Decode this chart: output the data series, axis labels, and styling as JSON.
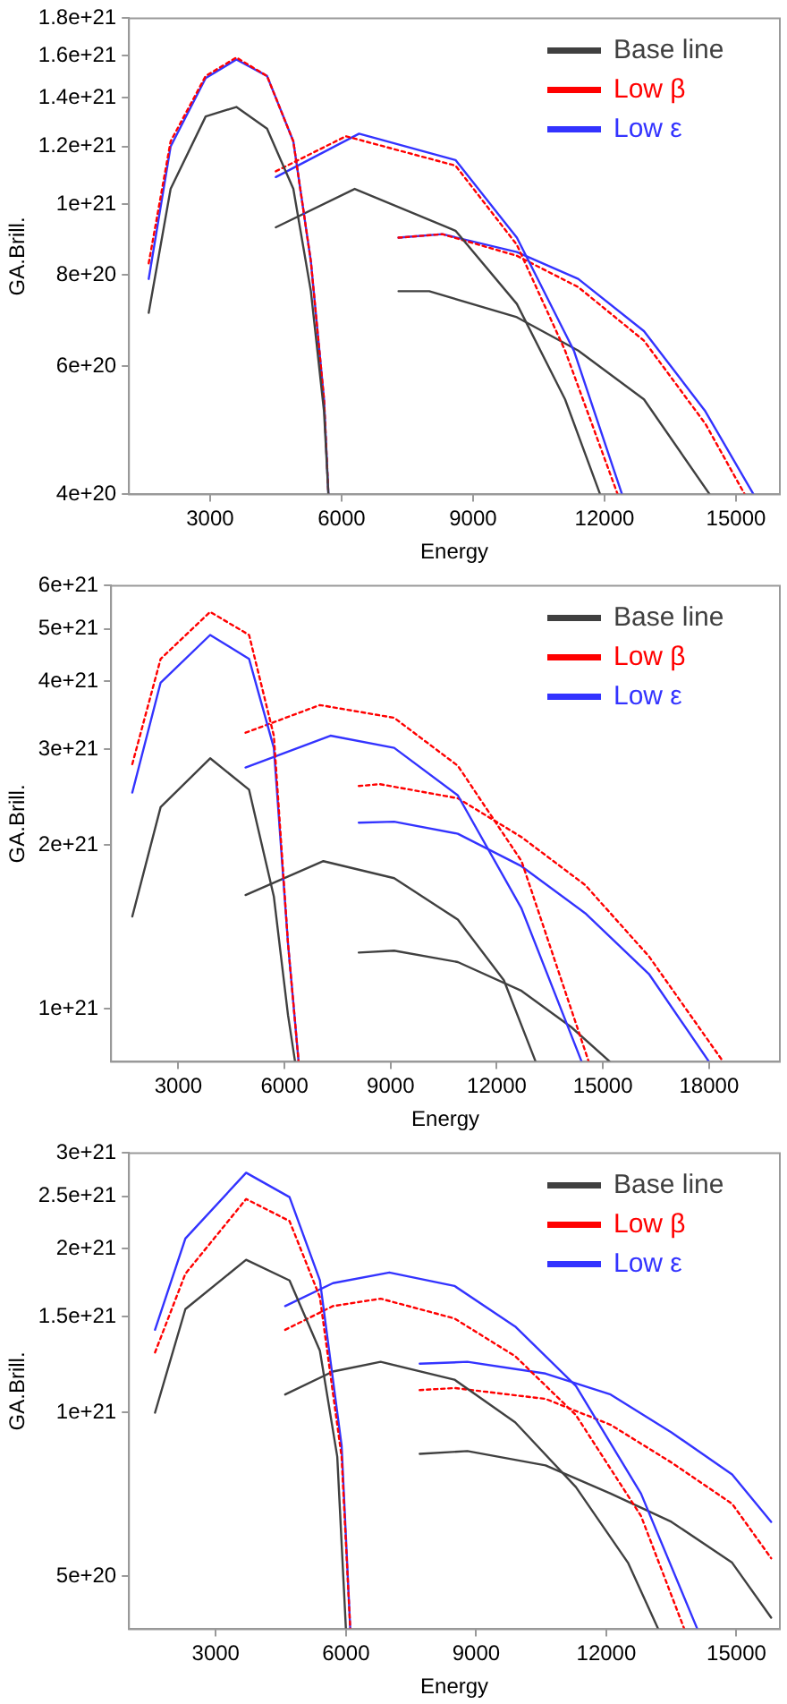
{
  "chart_data": [
    {
      "type": "line",
      "xlabel": "Energy",
      "ylabel": "GA.Brill.",
      "log": "y",
      "legend": "top right",
      "marker": "none",
      "xlim": [
        1150,
        16000
      ],
      "xticks": [
        3000,
        6000,
        9000,
        12000,
        15000
      ],
      "ylim": [
        4e+20,
        1.8e+21
      ],
      "yticks": [
        {
          "value": 4e+20,
          "label": "4e+20"
        },
        {
          "value": 6e+20,
          "label": "6e+20"
        },
        {
          "value": 8e+20,
          "label": "8e+20"
        },
        {
          "value": 1e+21,
          "label": "1e+21"
        },
        {
          "value": 1.2e+21,
          "label": "1.2e+21"
        },
        {
          "value": 1.4e+21,
          "label": "1.4e+21"
        },
        {
          "value": 1.6e+21,
          "label": "1.6e+21"
        },
        {
          "value": 1.8e+21,
          "label": "1.8e+21"
        }
      ],
      "series": [
        {
          "name": "Base line",
          "color": "#404040",
          "x": [
            1600,
            2100,
            2900,
            3600,
            4300,
            4900,
            5300,
            5600,
            5700
          ],
          "values": [
            7.1e+20,
            1.05e+21,
            1.32e+21,
            1.36e+21,
            1.27e+21,
            1.05e+21,
            7.6e+20,
            5.2e+20,
            4e+20
          ]
        },
        {
          "name": "Low β",
          "color": "#ff0000",
          "line_style": "dotted",
          "x": [
            1600,
            2100,
            2900,
            3600,
            4300,
            4900,
            5300,
            5600,
            5700
          ],
          "values": [
            8.3e+20,
            1.22e+21,
            1.5e+21,
            1.59e+21,
            1.5e+21,
            1.22e+21,
            8.35e+20,
            5.4e+20,
            4e+20
          ]
        },
        {
          "name": "Low ε",
          "color": "#3333ff",
          "x": [
            1600,
            2100,
            2900,
            3600,
            4300,
            4900,
            5300,
            5600,
            5700
          ],
          "values": [
            7.9e+20,
            1.2e+21,
            1.49e+21,
            1.58e+21,
            1.5e+21,
            1.22e+21,
            8.35e+20,
            5.4e+20,
            4e+20
          ]
        },
        {
          "color": "#404040",
          "x": [
            4500,
            6300,
            8600,
            10000,
            11100,
            11900
          ],
          "values": [
            9.3e+20,
            1.05e+21,
            9.2e+20,
            7.3e+20,
            5.4e+20,
            4e+20
          ]
        },
        {
          "color": "#ff0000",
          "line_style": "dotted",
          "x": [
            4500,
            6100,
            8600,
            10000,
            11100,
            12300
          ],
          "values": [
            1.11e+21,
            1.24e+21,
            1.13e+21,
            8.8e+20,
            6.3e+20,
            4e+20
          ]
        },
        {
          "color": "#3333ff",
          "x": [
            4500,
            6400,
            8600,
            10000,
            11300,
            12400
          ],
          "values": [
            1.09e+21,
            1.25e+21,
            1.15e+21,
            9e+20,
            6.3e+20,
            4e+20
          ]
        },
        {
          "color": "#404040",
          "x": [
            7300,
            8000,
            10000,
            11400,
            12900,
            14400
          ],
          "values": [
            7.6e+20,
            7.6e+20,
            7e+20,
            6.3e+20,
            5.4e+20,
            4e+20
          ]
        },
        {
          "color": "#ff0000",
          "line_style": "dotted",
          "x": [
            7300,
            8300,
            10000,
            11400,
            12900,
            14300,
            15200
          ],
          "values": [
            9e+20,
            9.1e+20,
            8.5e+20,
            7.7e+20,
            6.5e+20,
            5e+20,
            4e+20
          ]
        },
        {
          "color": "#3333ff",
          "x": [
            7300,
            8300,
            10000,
            11400,
            12900,
            14300,
            15400
          ],
          "values": [
            9e+20,
            9.1e+20,
            8.6e+20,
            7.9e+20,
            6.7e+20,
            5.2e+20,
            4e+20
          ]
        }
      ]
    },
    {
      "type": "line",
      "xlabel": "Energy",
      "ylabel": "GA.Brill.",
      "log": "y",
      "legend": "top right",
      "marker": "none",
      "xlim": [
        1100,
        20000
      ],
      "xticks": [
        3000,
        6000,
        9000,
        12000,
        15000,
        18000
      ],
      "ylim": [
        8e+20,
        6e+21
      ],
      "yticks": [
        {
          "value": 1e+21,
          "label": "1e+21"
        },
        {
          "value": 2e+21,
          "label": "2e+21"
        },
        {
          "value": 3e+21,
          "label": "3e+21"
        },
        {
          "value": 4e+21,
          "label": "4e+21"
        },
        {
          "value": 5e+21,
          "label": "5e+21"
        },
        {
          "value": 6e+21,
          "label": "6e+21"
        }
      ],
      "series": [
        {
          "name": "Base line",
          "color": "#404040",
          "x": [
            1700,
            2500,
            3900,
            5000,
            5700,
            6100,
            6300
          ],
          "values": [
            1.48e+21,
            2.35e+21,
            2.89e+21,
            2.53e+21,
            1.61e+21,
            9.75e+20,
            8e+20
          ]
        },
        {
          "name": "Low β",
          "color": "#ff0000",
          "line_style": "dotted",
          "x": [
            1700,
            2500,
            3900,
            5000,
            5700,
            6100,
            6400
          ],
          "values": [
            2.82e+21,
            4.4e+21,
            5.37e+21,
            4.87e+21,
            3.18e+21,
            1.32e+21,
            8e+20
          ]
        },
        {
          "name": "Low ε",
          "color": "#3333ff",
          "x": [
            1700,
            2500,
            3900,
            5000,
            5700,
            6100,
            6400
          ],
          "values": [
            2.5e+21,
            3.98e+21,
            4.87e+21,
            4.4e+21,
            3.02e+21,
            1.32e+21,
            8e+20
          ]
        },
        {
          "color": "#404040",
          "x": [
            4900,
            7100,
            9100,
            10900,
            12200,
            13100
          ],
          "values": [
            1.62e+21,
            1.87e+21,
            1.74e+21,
            1.46e+21,
            1.13e+21,
            8e+20
          ]
        },
        {
          "color": "#ff0000",
          "line_style": "dotted",
          "x": [
            4900,
            7000,
            9100,
            10900,
            12700,
            14600
          ],
          "values": [
            3.22e+21,
            3.62e+21,
            3.43e+21,
            2.8e+21,
            1.87e+21,
            8e+20
          ]
        },
        {
          "color": "#3333ff",
          "x": [
            4900,
            7300,
            9100,
            10900,
            12700,
            14400
          ],
          "values": [
            2.78e+21,
            3.18e+21,
            3.02e+21,
            2.47e+21,
            1.53e+21,
            8e+20
          ]
        },
        {
          "color": "#404040",
          "x": [
            8100,
            9100,
            10900,
            12700,
            14100,
            15200
          ],
          "values": [
            1.27e+21,
            1.28e+21,
            1.22e+21,
            1.08e+21,
            9.27e+20,
            8e+20
          ]
        },
        {
          "color": "#ff0000",
          "line_style": "dotted",
          "x": [
            8100,
            8700,
            10900,
            12700,
            14500,
            16300,
            18400
          ],
          "values": [
            2.57e+21,
            2.59e+21,
            2.44e+21,
            2.07e+21,
            1.69e+21,
            1.25e+21,
            8e+20
          ]
        },
        {
          "color": "#3333ff",
          "x": [
            8100,
            9100,
            10900,
            12700,
            14500,
            16300,
            18000
          ],
          "values": [
            2.2e+21,
            2.21e+21,
            2.1e+21,
            1.83e+21,
            1.5e+21,
            1.16e+21,
            8e+20
          ]
        }
      ]
    },
    {
      "type": "line",
      "xlabel": "Energy",
      "ylabel": "GA.Brill.",
      "log": "y",
      "legend": "top right",
      "marker": "none",
      "xlim": [
        1000,
        16000
      ],
      "xticks": [
        3000,
        6000,
        9000,
        12000,
        15000
      ],
      "ylim": [
        4e+20,
        3e+21
      ],
      "yticks": [
        {
          "value": 5e+20,
          "label": "5e+20"
        },
        {
          "value": 1e+21,
          "label": "1e+21"
        },
        {
          "value": 1.5e+21,
          "label": "1.5e+21"
        },
        {
          "value": 2e+21,
          "label": "2e+21"
        },
        {
          "value": 2.5e+21,
          "label": "2.5e+21"
        },
        {
          "value": 3e+21,
          "label": "3e+21"
        }
      ],
      "series": [
        {
          "name": "Base line",
          "color": "#404040",
          "x": [
            1600,
            2300,
            3700,
            4700,
            5400,
            5800,
            6000
          ],
          "values": [
            1e+21,
            1.55e+21,
            1.91e+21,
            1.75e+21,
            1.3e+21,
            8.3e+20,
            4e+20
          ]
        },
        {
          "name": "Low β",
          "color": "#ff0000",
          "line_style": "dotted",
          "x": [
            1600,
            2300,
            3700,
            4700,
            5400,
            5900,
            6100
          ],
          "values": [
            1.29e+21,
            1.8e+21,
            2.47e+21,
            2.25e+21,
            1.63e+21,
            8.3e+20,
            4e+20
          ]
        },
        {
          "name": "Low ε",
          "color": "#3333ff",
          "x": [
            1600,
            2300,
            3700,
            4700,
            5400,
            5900,
            6100
          ],
          "values": [
            1.42e+21,
            2.09e+21,
            2.76e+21,
            2.49e+21,
            1.75e+21,
            8.7e+20,
            4e+20
          ]
        },
        {
          "color": "#404040",
          "x": [
            4600,
            5700,
            6800,
            8500,
            9900,
            11300,
            12500,
            13200
          ],
          "values": [
            1.08e+21,
            1.19e+21,
            1.24e+21,
            1.15e+21,
            9.6e+20,
            7.3e+20,
            5.3e+20,
            4e+20
          ]
        },
        {
          "color": "#ff0000",
          "line_style": "dotted",
          "x": [
            4600,
            5700,
            6800,
            8500,
            9900,
            11300,
            12800,
            13800
          ],
          "values": [
            1.42e+21,
            1.57e+21,
            1.62e+21,
            1.49e+21,
            1.27e+21,
            9.9e+20,
            6.46e+20,
            4e+20
          ]
        },
        {
          "color": "#3333ff",
          "x": [
            4600,
            5700,
            7000,
            8500,
            9900,
            11300,
            12800,
            14100
          ],
          "values": [
            1.57e+21,
            1.73e+21,
            1.81e+21,
            1.71e+21,
            1.44e+21,
            1.12e+21,
            7.1e+20,
            4e+20
          ]
        },
        {
          "color": "#404040",
          "x": [
            7700,
            8800,
            10600,
            12100,
            13500,
            14900,
            15800
          ],
          "values": [
            8.4e+20,
            8.5e+20,
            8e+20,
            7.1e+20,
            6.3e+20,
            5.3e+20,
            4.2e+20
          ]
        },
        {
          "color": "#ff0000",
          "line_style": "dotted",
          "x": [
            7700,
            8500,
            10600,
            12100,
            13500,
            14900,
            15800
          ],
          "values": [
            1.1e+21,
            1.11e+21,
            1.06e+21,
            9.5e+20,
            8.1e+20,
            6.8e+20,
            5.4e+20
          ]
        },
        {
          "color": "#3333ff",
          "x": [
            7700,
            8800,
            10600,
            12100,
            13500,
            14900,
            15800
          ],
          "values": [
            1.23e+21,
            1.24e+21,
            1.18e+21,
            1.08e+21,
            9.2e+20,
            7.7e+20,
            6.3e+20
          ]
        }
      ]
    }
  ]
}
